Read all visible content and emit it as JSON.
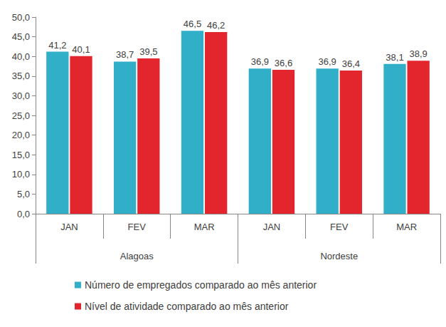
{
  "chart_data": {
    "type": "bar",
    "category_groups": [
      {
        "name": "Alagoas",
        "categories": [
          "JAN",
          "FEV",
          "MAR"
        ]
      },
      {
        "name": "Nordeste",
        "categories": [
          "JAN",
          "FEV",
          "MAR"
        ]
      }
    ],
    "series": [
      {
        "name": "Número de empregados comparado ao mês anterior",
        "color": "#31afc8",
        "values": [
          41.2,
          38.7,
          46.5,
          36.9,
          36.9,
          38.1
        ],
        "value_labels": [
          "41,2",
          "38,7",
          "46,5",
          "36,9",
          "36,9",
          "38,1"
        ]
      },
      {
        "name": "Nível de atividade comparado ao mês anterior",
        "color": "#e3262e",
        "values": [
          40.1,
          39.5,
          46.2,
          36.6,
          36.4,
          38.9
        ],
        "value_labels": [
          "40,1",
          "39,5",
          "46,2",
          "36,6",
          "36,4",
          "38,9"
        ]
      }
    ],
    "ylim": [
      0,
      50
    ],
    "yticks": [
      {
        "value": 0,
        "label": "0,0"
      },
      {
        "value": 5,
        "label": "5,0"
      },
      {
        "value": 10,
        "label": "10,0"
      },
      {
        "value": 15,
        "label": "15,0"
      },
      {
        "value": 20,
        "label": "20,0"
      },
      {
        "value": 25,
        "label": "25,0"
      },
      {
        "value": 30,
        "label": "30,0"
      },
      {
        "value": 35,
        "label": "35,0"
      },
      {
        "value": 40,
        "label": "40,0"
      },
      {
        "value": 45,
        "label": "45,0"
      },
      {
        "value": 50,
        "label": "50,0"
      }
    ],
    "grid": false,
    "legend": "bottom",
    "data_labels": true
  }
}
